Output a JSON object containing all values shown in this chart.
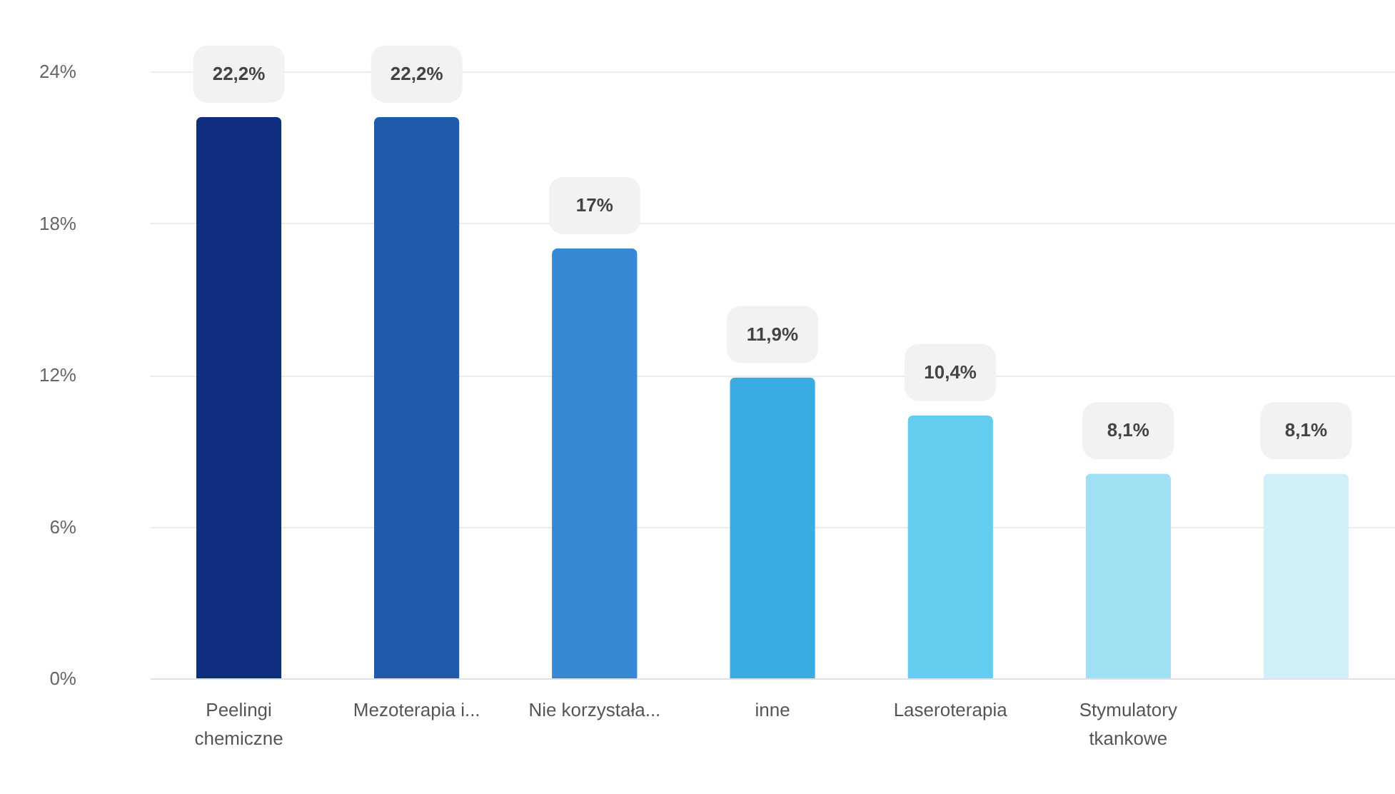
{
  "chart_data": {
    "type": "bar",
    "categories": [
      "Peelingi chemiczne",
      "Mezoterapia i...",
      "Nie korzystała...",
      "inne",
      "Laseroterapia",
      "Stymulatory tkankowe",
      null
    ],
    "values": [
      22.2,
      22.2,
      17,
      11.9,
      10.4,
      8.1,
      8.1
    ],
    "colors": [
      "#102e80",
      "#1f5aab",
      "#3789d6",
      "#3aabe3",
      "#62cdee",
      "#a0e0f2",
      "#d0f0f8"
    ],
    "value_labels": [
      "22,2%",
      "22,2%",
      "17%",
      "11,9%",
      "10,4%",
      "8,1%",
      "8,1%"
    ],
    "ylim": [
      0,
      24
    ],
    "yticks": [
      {
        "value": 0,
        "label": "0%"
      },
      {
        "value": 6,
        "label": "6%"
      },
      {
        "value": 12,
        "label": "12%"
      },
      {
        "value": 18,
        "label": "18%"
      },
      {
        "value": 24,
        "label": "24%"
      }
    ],
    "grid": true
  }
}
